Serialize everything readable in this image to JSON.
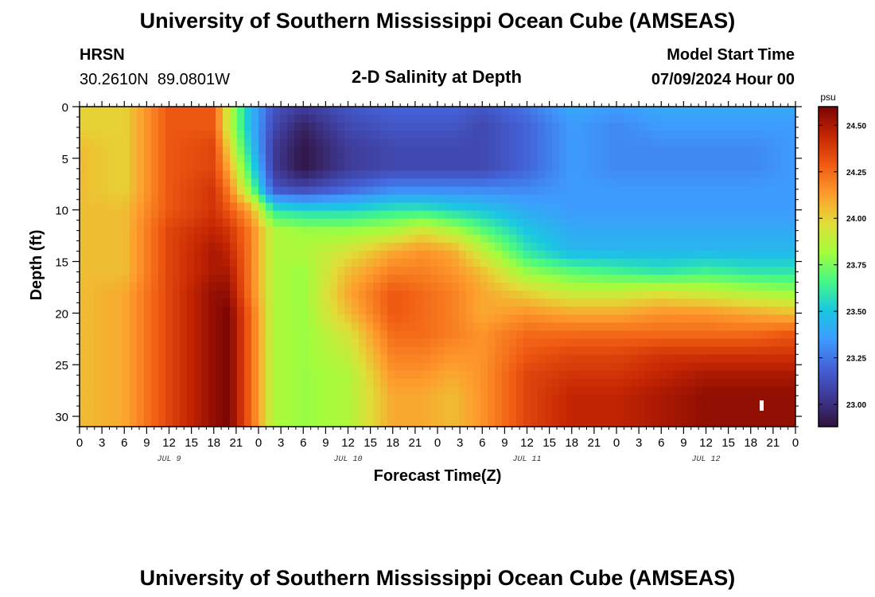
{
  "header": {
    "title": "University of Southern Mississippi Ocean Cube (AMSEAS)",
    "station": "HRSN",
    "coords": "30.2610N  89.0801W",
    "subtitle": "2-D Salinity at Depth",
    "model_start_label": "Model Start Time",
    "model_start_value": "07/09/2024 Hour 00"
  },
  "footer": {
    "title": "University of Southern Mississippi Ocean Cube (AMSEAS)"
  },
  "colorbar": {
    "unit": "psu",
    "range": [
      22.88,
      24.6
    ],
    "ticks": [
      {
        "value": 23.0,
        "label": "23.00"
      },
      {
        "value": 23.25,
        "label": "23.25"
      },
      {
        "value": 23.5,
        "label": "23.50"
      },
      {
        "value": 23.75,
        "label": "23.75"
      },
      {
        "value": 24.0,
        "label": "24.00"
      },
      {
        "value": 24.25,
        "label": "24.25"
      },
      {
        "value": 24.5,
        "label": "24.50"
      }
    ],
    "stops": [
      "#30123b",
      "#3e3893",
      "#4461d7",
      "#3e9bfe",
      "#1ac7e1",
      "#46f884",
      "#a3fd3d",
      "#e1dd37",
      "#fe9b2d",
      "#f05b12",
      "#c42503",
      "#7a0403"
    ]
  },
  "chart_data": {
    "type": "heatmap",
    "title": "2-D Salinity at Depth",
    "xlabel": "Forecast Time(Z)",
    "ylabel": "Depth (ft)",
    "xlim": [
      0,
      96
    ],
    "ylim": [
      31,
      0
    ],
    "x_ticks": [
      {
        "value": 0,
        "label": "0"
      },
      {
        "value": 3,
        "label": "3"
      },
      {
        "value": 6,
        "label": "6"
      },
      {
        "value": 9,
        "label": "9"
      },
      {
        "value": 12,
        "label": "12"
      },
      {
        "value": 15,
        "label": "15"
      },
      {
        "value": 18,
        "label": "18"
      },
      {
        "value": 21,
        "label": "21"
      },
      {
        "value": 24,
        "label": "0"
      },
      {
        "value": 27,
        "label": "3"
      },
      {
        "value": 30,
        "label": "6"
      },
      {
        "value": 33,
        "label": "9"
      },
      {
        "value": 36,
        "label": "12"
      },
      {
        "value": 39,
        "label": "15"
      },
      {
        "value": 42,
        "label": "18"
      },
      {
        "value": 45,
        "label": "21"
      },
      {
        "value": 48,
        "label": "0"
      },
      {
        "value": 51,
        "label": "3"
      },
      {
        "value": 54,
        "label": "6"
      },
      {
        "value": 57,
        "label": "9"
      },
      {
        "value": 60,
        "label": "12"
      },
      {
        "value": 63,
        "label": "15"
      },
      {
        "value": 66,
        "label": "18"
      },
      {
        "value": 69,
        "label": "21"
      },
      {
        "value": 72,
        "label": "0"
      },
      {
        "value": 75,
        "label": "3"
      },
      {
        "value": 78,
        "label": "6"
      },
      {
        "value": 81,
        "label": "9"
      },
      {
        "value": 84,
        "label": "12"
      },
      {
        "value": 87,
        "label": "15"
      },
      {
        "value": 90,
        "label": "18"
      },
      {
        "value": 93,
        "label": "21"
      },
      {
        "value": 96,
        "label": "0"
      }
    ],
    "day_labels": [
      {
        "value": 12,
        "label": "JUL 9"
      },
      {
        "value": 36,
        "label": "JUL 10"
      },
      {
        "value": 60,
        "label": "JUL 11"
      },
      {
        "value": 84,
        "label": "JUL 12"
      }
    ],
    "y_ticks": [
      0,
      5,
      10,
      15,
      20,
      25,
      30
    ],
    "depths_ft": [
      0,
      2,
      4,
      6,
      8,
      10,
      12,
      14,
      16,
      18,
      20,
      22,
      24,
      26,
      28,
      30
    ],
    "times_h": [
      0,
      6,
      12,
      18,
      20,
      23,
      26,
      30,
      36,
      42,
      46,
      50,
      54,
      60,
      66,
      72,
      78,
      84,
      90,
      96
    ],
    "salinity_psu": [
      [
        24.0,
        24.0,
        24.3,
        24.3,
        23.9,
        23.45,
        23.15,
        23.05,
        23.15,
        23.2,
        23.2,
        23.2,
        23.15,
        23.25,
        23.4,
        23.35,
        23.4,
        23.4,
        23.4,
        23.4
      ],
      [
        24.0,
        24.0,
        24.3,
        24.3,
        23.9,
        23.45,
        23.1,
        22.95,
        23.1,
        23.15,
        23.15,
        23.15,
        23.1,
        23.2,
        23.35,
        23.3,
        23.35,
        23.35,
        23.35,
        23.35
      ],
      [
        24.05,
        24.0,
        24.3,
        24.35,
        24.0,
        23.5,
        23.05,
        22.9,
        23.05,
        23.1,
        23.1,
        23.1,
        23.1,
        23.2,
        23.35,
        23.3,
        23.3,
        23.3,
        23.3,
        23.35
      ],
      [
        24.05,
        24.0,
        24.3,
        24.35,
        24.1,
        23.6,
        23.05,
        22.9,
        23.05,
        23.1,
        23.1,
        23.1,
        23.1,
        23.2,
        23.35,
        23.3,
        23.3,
        23.3,
        23.3,
        23.35
      ],
      [
        24.05,
        24.0,
        24.3,
        24.4,
        24.2,
        23.75,
        23.15,
        23.1,
        23.2,
        23.3,
        23.3,
        23.3,
        23.3,
        23.3,
        23.35,
        23.35,
        23.35,
        23.35,
        23.35,
        23.35
      ],
      [
        24.05,
        24.05,
        24.3,
        24.4,
        24.3,
        24.1,
        23.6,
        23.55,
        23.55,
        23.6,
        23.6,
        23.55,
        23.5,
        23.4,
        23.35,
        23.35,
        23.35,
        23.35,
        23.35,
        23.35
      ],
      [
        24.05,
        24.05,
        24.35,
        24.45,
        24.4,
        24.2,
        23.85,
        23.8,
        23.8,
        23.85,
        23.95,
        23.85,
        23.7,
        23.5,
        23.4,
        23.4,
        23.4,
        23.4,
        23.4,
        23.4
      ],
      [
        24.05,
        24.05,
        24.35,
        24.5,
        24.45,
        24.2,
        23.85,
        23.85,
        23.95,
        24.1,
        24.15,
        24.1,
        23.9,
        23.6,
        23.45,
        23.45,
        23.45,
        23.45,
        23.45,
        23.45
      ],
      [
        24.05,
        24.05,
        24.35,
        24.5,
        24.5,
        24.2,
        23.85,
        23.8,
        24.05,
        24.2,
        24.2,
        24.15,
        24.05,
        23.8,
        23.7,
        23.65,
        23.6,
        23.65,
        23.6,
        23.6
      ],
      [
        24.05,
        24.1,
        24.35,
        24.55,
        24.55,
        24.2,
        23.85,
        23.8,
        24.1,
        24.3,
        24.25,
        24.2,
        24.1,
        24.0,
        23.9,
        23.9,
        23.95,
        23.9,
        23.85,
        23.8
      ],
      [
        24.05,
        24.1,
        24.35,
        24.55,
        24.6,
        24.25,
        23.85,
        23.8,
        24.05,
        24.3,
        24.25,
        24.2,
        24.1,
        24.15,
        24.1,
        24.1,
        24.15,
        24.15,
        24.1,
        24.05
      ],
      [
        24.05,
        24.1,
        24.35,
        24.55,
        24.6,
        24.25,
        23.85,
        23.8,
        23.95,
        24.25,
        24.25,
        24.2,
        24.15,
        24.25,
        24.25,
        24.25,
        24.25,
        24.25,
        24.25,
        24.3
      ],
      [
        24.05,
        24.1,
        24.35,
        24.55,
        24.6,
        24.25,
        23.85,
        23.8,
        23.9,
        24.2,
        24.2,
        24.15,
        24.15,
        24.3,
        24.35,
        24.35,
        24.4,
        24.4,
        24.4,
        24.4
      ],
      [
        24.05,
        24.1,
        24.35,
        24.55,
        24.6,
        24.25,
        23.85,
        23.8,
        23.85,
        24.15,
        24.15,
        24.1,
        24.15,
        24.35,
        24.4,
        24.4,
        24.45,
        24.5,
        24.5,
        24.5
      ],
      [
        24.05,
        24.1,
        24.35,
        24.55,
        24.6,
        24.25,
        23.85,
        23.8,
        23.85,
        24.1,
        24.1,
        24.05,
        24.15,
        24.35,
        24.45,
        24.45,
        24.5,
        24.55,
        24.55,
        24.55
      ],
      [
        24.05,
        24.1,
        24.35,
        24.55,
        24.6,
        24.25,
        23.85,
        23.8,
        23.85,
        24.1,
        24.1,
        24.05,
        24.15,
        24.35,
        24.45,
        24.45,
        24.5,
        24.55,
        24.55,
        24.55
      ]
    ]
  }
}
